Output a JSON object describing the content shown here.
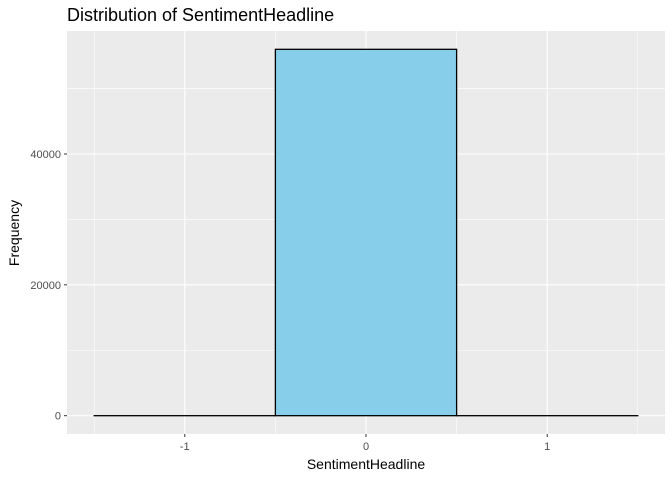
{
  "chart_data": {
    "type": "bar",
    "title": "Distribution of SentimentHeadline",
    "xlabel": "SentimentHeadline",
    "ylabel": "Frequency",
    "x_ticks": [
      "-1",
      "0",
      "1"
    ],
    "y_ticks": [
      "0",
      "20000",
      "40000"
    ],
    "bins": [
      {
        "x_min": -1.5,
        "x_max": -0.5,
        "value": 0
      },
      {
        "x_min": -0.5,
        "x_max": 0.5,
        "value": 56000
      },
      {
        "x_min": 0.5,
        "x_max": 1.5,
        "value": 0
      }
    ],
    "xlim": [
      -1.65,
      1.65
    ],
    "ylim": [
      -2800,
      58800
    ],
    "bar_fill": "#87CEEB",
    "bar_outline": "#000000",
    "panel_background": "#EBEBEB",
    "grid": true
  }
}
